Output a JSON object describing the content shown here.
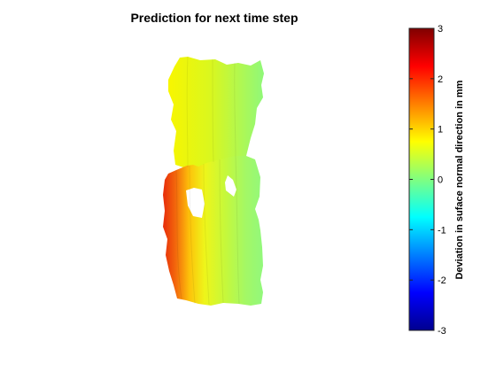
{
  "chart_data": {
    "type": "heatmap",
    "title": "Prediction for next time step",
    "colorbar": {
      "label": "Deviation in suface normal direction in mm",
      "min": -3,
      "max": 3,
      "ticks": [
        "3",
        "2",
        "1",
        "0",
        "-1",
        "-2",
        "-3"
      ],
      "colormap": "jet"
    },
    "surface": {
      "description_values": "deviation field on a bracket-shaped part",
      "range": [
        -0.2,
        2.5
      ],
      "gradient": [
        {
          "x_frac": 0.0,
          "value": 2.5
        },
        {
          "x_frac": 0.25,
          "value": 1.4
        },
        {
          "x_frac": 0.5,
          "value": 0.6
        },
        {
          "x_frac": 1.0,
          "value": -0.2
        }
      ]
    },
    "axes_visible": false
  }
}
